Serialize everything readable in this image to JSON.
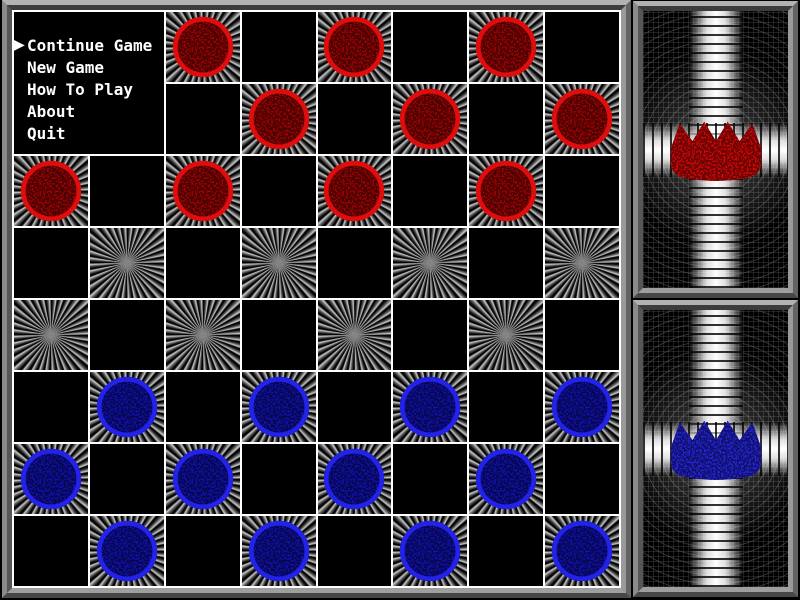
{
  "menu": {
    "cursor": "▶",
    "items": [
      {
        "label": "Continue Game",
        "selected": true
      },
      {
        "label": "New Game",
        "selected": false
      },
      {
        "label": "How To Play",
        "selected": false
      },
      {
        "label": "About",
        "selected": false
      },
      {
        "label": "Quit",
        "selected": false
      }
    ]
  },
  "board": {
    "rows": 8,
    "cols": 8,
    "legend": {
      ".": "black-square",
      "*": "starburst-square-empty",
      "R": "starburst-square-with-red-piece",
      "B": "starburst-square-with-blue-piece"
    },
    "grid": [
      "*.R.R.R.",
      ".*.R.R.R",
      "R.R.R.R.",
      ".*.*.*.*",
      "*.*.*.*.",
      ".B.B.B.B",
      "B.B.B.B.",
      ".B.B.B.B"
    ]
  },
  "panels": {
    "top": {
      "player": "red",
      "crown_color": "#cf0707"
    },
    "bottom": {
      "player": "blue",
      "crown_color": "#2424d8"
    }
  },
  "colors": {
    "red_piece_fill": "#9e0303",
    "red_piece_rim": "#e00d0d",
    "blue_piece_fill": "#1111b0",
    "blue_piece_rim": "#2222e8",
    "grid_line": "#ffffff",
    "menu_text": "#ffffff",
    "frame_gray": "#8a8a8a",
    "background": "#000000"
  }
}
